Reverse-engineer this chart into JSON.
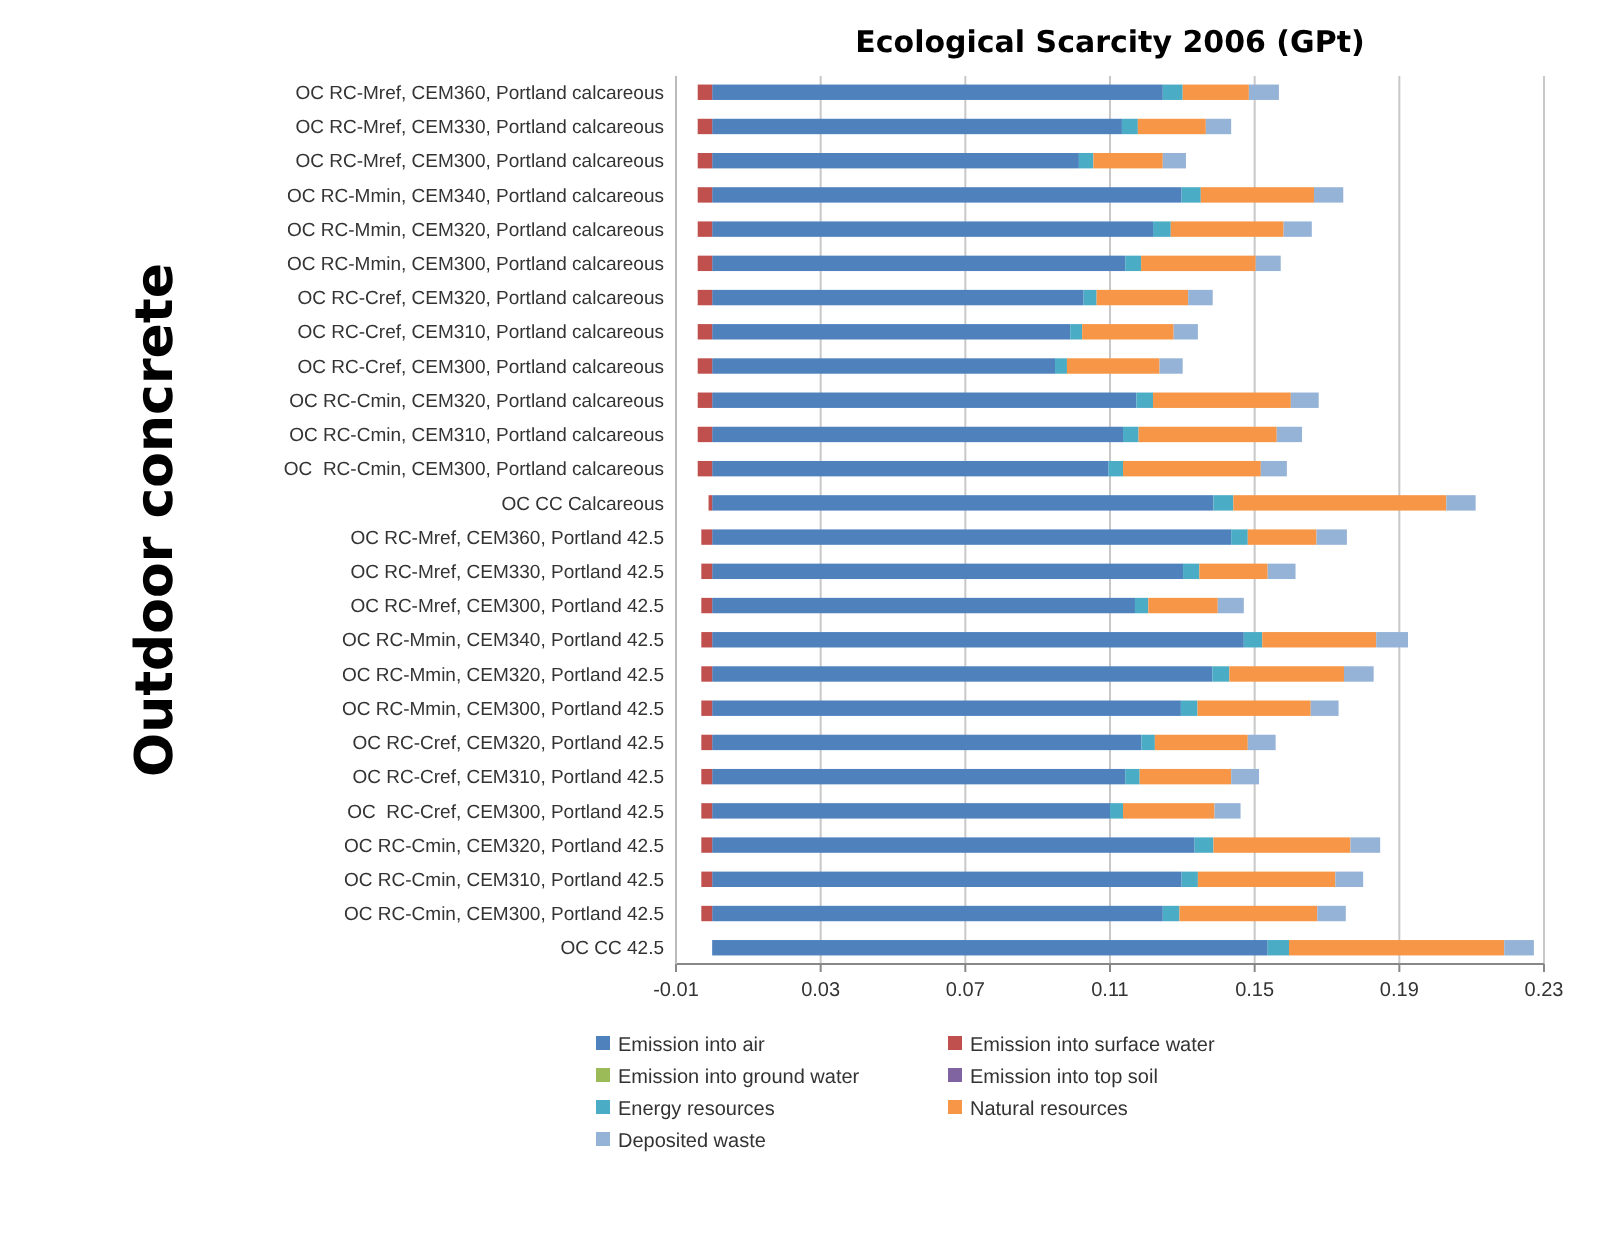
{
  "chart_data": {
    "type": "bar",
    "orientation": "horizontal",
    "stacked": true,
    "title": "Ecological Scarcity 2006 (GPt)",
    "ylabel": "Outdoor concrete",
    "categories": [
      "OC RC-Mref, CEM360, Portland calcareous",
      "OC RC-Mref, CEM330, Portland calcareous",
      "OC RC-Mref, CEM300, Portland calcareous",
      "OC RC-Mmin, CEM340, Portland calcareous",
      "OC RC-Mmin, CEM320, Portland calcareous",
      "OC RC-Mmin, CEM300, Portland calcareous",
      "OC RC-Cref, CEM320, Portland calcareous",
      "OC RC-Cref, CEM310, Portland calcareous",
      "OC RC-Cref, CEM300, Portland calcareous",
      "OC RC-Cmin, CEM320, Portland calcareous",
      "OC RC-Cmin, CEM310, Portland calcareous",
      "OC  RC-Cmin, CEM300, Portland calcareous",
      "OC CC Calcareous",
      "OC RC-Mref, CEM360, Portland 42.5",
      "OC RC-Mref, CEM330, Portland 42.5",
      "OC RC-Mref, CEM300, Portland 42.5",
      "OC RC-Mmin, CEM340, Portland 42.5",
      "OC RC-Mmin, CEM320, Portland 42.5",
      "OC RC-Mmin, CEM300, Portland 42.5",
      "OC RC-Cref, CEM320, Portland 42.5",
      "OC RC-Cref, CEM310, Portland 42.5",
      "OC  RC-Cref, CEM300, Portland 42.5",
      "OC RC-Cmin, CEM320, Portland 42.5",
      "OC RC-Cmin, CEM310, Portland 42.5",
      "OC RC-Cmin, CEM300, Portland 42.5",
      "OC CC 42.5"
    ],
    "series": [
      {
        "name": "Emission into air",
        "color": "#4f81bd",
        "values": [
          0.1246,
          0.1133,
          0.1014,
          0.1298,
          0.1219,
          0.1142,
          0.1027,
          0.099,
          0.0948,
          0.1173,
          0.1136,
          0.1096,
          0.1386,
          0.1435,
          0.1302,
          0.1169,
          0.147,
          0.1383,
          0.1296,
          0.1187,
          0.1142,
          0.11,
          0.1334,
          0.1298,
          0.1246,
          0.1536
        ]
      },
      {
        "name": "Emission into surface water",
        "color": "#c0504d",
        "values": [
          -0.004,
          -0.004,
          -0.004,
          -0.004,
          -0.004,
          -0.004,
          -0.004,
          -0.004,
          -0.004,
          -0.004,
          -0.004,
          -0.004,
          -0.001,
          -0.003,
          -0.003,
          -0.003,
          -0.003,
          -0.003,
          -0.003,
          -0.003,
          -0.003,
          -0.003,
          -0.003,
          -0.003,
          -0.003,
          0
        ]
      },
      {
        "name": "Emission into ground water",
        "color": "#9bbb59",
        "values": [
          0,
          0,
          0,
          0,
          0,
          0,
          0,
          0,
          0,
          0,
          0,
          0,
          0,
          0,
          0,
          0,
          0,
          0,
          0,
          0,
          0,
          0,
          0,
          0,
          0,
          0
        ]
      },
      {
        "name": "Emission into top soil",
        "color": "#8064a2",
        "values": [
          0,
          0,
          0,
          0,
          0,
          0,
          0,
          0,
          0,
          0,
          0,
          0,
          0,
          0,
          0,
          0,
          0,
          0,
          0,
          0,
          0,
          0,
          0,
          0,
          0,
          0
        ]
      },
      {
        "name": "Energy resources",
        "color": "#4bacc6",
        "values": [
          0.0055,
          0.0044,
          0.004,
          0.0053,
          0.0049,
          0.0044,
          0.0036,
          0.0033,
          0.0033,
          0.0046,
          0.0043,
          0.004,
          0.0055,
          0.0046,
          0.0045,
          0.0037,
          0.0051,
          0.0047,
          0.0046,
          0.0037,
          0.004,
          0.0036,
          0.0052,
          0.0045,
          0.0046,
          0.0059
        ]
      },
      {
        "name": "Natural resources",
        "color": "#f79646",
        "values": [
          0.0183,
          0.0188,
          0.0192,
          0.0313,
          0.0312,
          0.0317,
          0.0253,
          0.0253,
          0.0256,
          0.0381,
          0.0382,
          0.0381,
          0.0589,
          0.019,
          0.0189,
          0.0192,
          0.0315,
          0.0317,
          0.0313,
          0.0257,
          0.0253,
          0.0253,
          0.0379,
          0.038,
          0.0381,
          0.0595
        ]
      },
      {
        "name": "Deposited waste",
        "color": "#95b3d7",
        "values": [
          0.0083,
          0.007,
          0.0064,
          0.0081,
          0.0078,
          0.0069,
          0.0068,
          0.0067,
          0.0064,
          0.0077,
          0.007,
          0.0072,
          0.0081,
          0.0084,
          0.0077,
          0.0072,
          0.0088,
          0.0082,
          0.0077,
          0.0077,
          0.0077,
          0.0072,
          0.0082,
          0.0077,
          0.0079,
          0.0082
        ]
      }
    ],
    "xlim": [
      -0.01,
      0.23
    ],
    "xticks": [
      -0.01,
      0.03,
      0.07,
      0.11,
      0.15,
      0.19,
      0.23
    ],
    "grid": "x",
    "legend": "bottom"
  }
}
